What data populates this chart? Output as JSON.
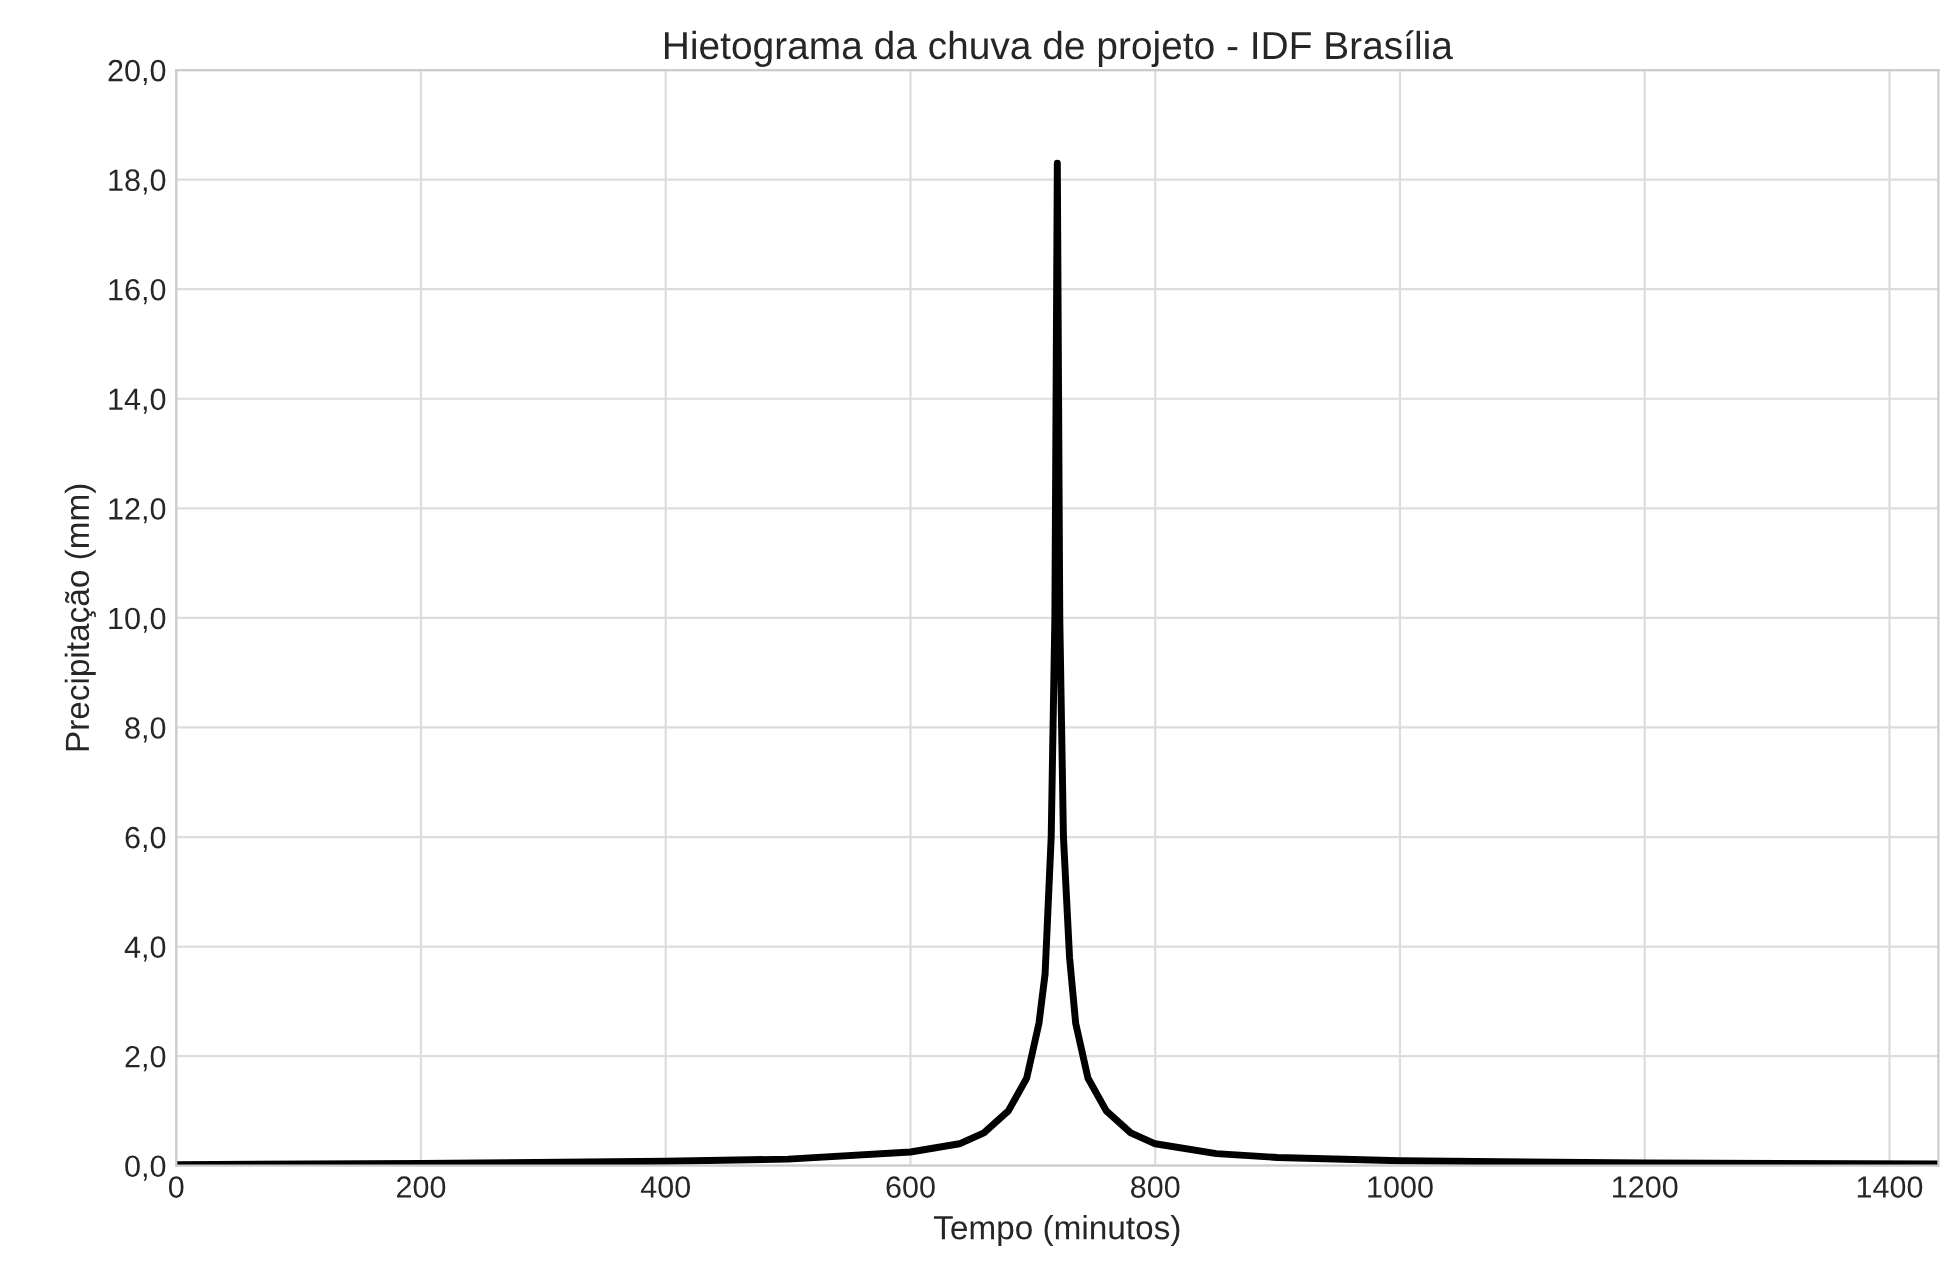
{
  "chart_data": {
    "type": "line",
    "title": "Hietograma da chuva de projeto - IDF Brasília",
    "xlabel": "Tempo (minutos)",
    "ylabel": "Precipitação (mm)",
    "x": [
      0,
      200,
      400,
      500,
      600,
      640,
      660,
      680,
      695,
      705,
      710,
      715,
      718,
      720,
      722,
      725,
      730,
      735,
      745,
      760,
      780,
      800,
      850,
      900,
      1000,
      1200,
      1440
    ],
    "series": [
      {
        "color": "#000000",
        "values": [
          0.02,
          0.04,
          0.08,
          0.12,
          0.25,
          0.4,
          0.6,
          1.0,
          1.6,
          2.6,
          3.5,
          6.0,
          10.0,
          18.3,
          10.0,
          6.0,
          3.8,
          2.6,
          1.6,
          1.0,
          0.6,
          0.4,
          0.22,
          0.15,
          0.09,
          0.05,
          0.03
        ]
      }
    ],
    "xlim": [
      0,
      1440
    ],
    "xticks": [
      0,
      200,
      400,
      600,
      800,
      1000,
      1200,
      1400
    ],
    "ylim": [
      0,
      20
    ],
    "yticks": [
      {
        "value": 0,
        "label": "0,0"
      },
      {
        "value": 2,
        "label": "2,0"
      },
      {
        "value": 4,
        "label": "4,0"
      },
      {
        "value": 6,
        "label": "6,0"
      },
      {
        "value": 8,
        "label": "8,0"
      },
      {
        "value": 10,
        "label": "10,0"
      },
      {
        "value": 12,
        "label": "12,0"
      },
      {
        "value": 14,
        "label": "14,0"
      },
      {
        "value": 16,
        "label": "16,0"
      },
      {
        "value": 18,
        "label": "18,0"
      },
      {
        "value": 20,
        "label": "20,0"
      }
    ],
    "grid": true,
    "marker": "none",
    "line_style": "solid"
  }
}
